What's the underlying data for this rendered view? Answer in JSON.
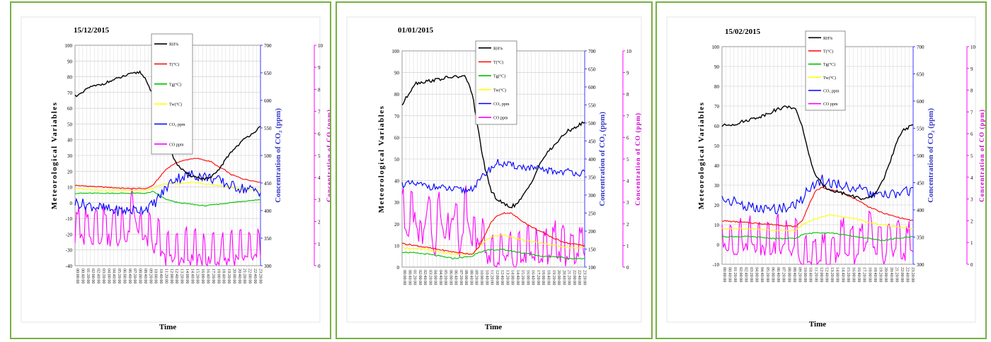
{
  "chart_data": [
    {
      "type": "line",
      "title": "15/12/2015",
      "xlabel": "Time",
      "ylabel_left": "Meteorological Variables",
      "ylabel_right1": "Concentration of CO₂ (ppm)",
      "ylabel_right2": "Concentration of CO (ppm)",
      "ylim_left": [
        -40,
        100
      ],
      "ylim_right1": [
        300,
        700
      ],
      "ylim_right2": [
        0,
        10
      ],
      "left_ticks": [
        "100",
        "90",
        "80",
        "70",
        "60",
        "50",
        "40",
        "30",
        "20",
        "10",
        "0",
        "-10",
        "-20",
        "-30",
        "-40"
      ],
      "right1_ticks": [
        "700",
        "650",
        "600",
        "550",
        "500",
        "450",
        "400",
        "350",
        "300"
      ],
      "right2_ticks": [
        "10",
        "9",
        "8",
        "7",
        "6",
        "5",
        "4",
        "3",
        "2",
        "1",
        "0"
      ],
      "legend": [
        "RH%",
        "T(°C)",
        "Tg(°C)",
        "Tw(°C)",
        "CO₂ ppm",
        "CO ppm"
      ],
      "n_points": 144,
      "series": [
        {
          "name": "RH%",
          "axis": "left",
          "color": "#000000",
          "x": [
            0,
            5,
            10,
            20,
            30,
            40,
            50,
            55,
            60,
            65,
            70,
            75,
            80,
            85,
            90,
            95,
            100,
            105,
            110,
            115,
            120,
            130,
            143
          ],
          "y": [
            68,
            69,
            73,
            75,
            78,
            81,
            83,
            78,
            68,
            55,
            42,
            30,
            23,
            19,
            17,
            16,
            15,
            16,
            20,
            26,
            32,
            40,
            48
          ]
        },
        {
          "name": "T(°C)",
          "axis": "left",
          "color": "#ff0000",
          "x": [
            0,
            20,
            40,
            55,
            60,
            65,
            70,
            75,
            80,
            85,
            90,
            95,
            100,
            105,
            110,
            115,
            120,
            130,
            143
          ],
          "y": [
            11,
            10,
            9,
            9,
            11,
            16,
            21,
            24,
            26,
            27,
            28,
            28,
            27,
            26,
            23,
            21,
            18,
            15,
            13
          ]
        },
        {
          "name": "Tg(°C)",
          "axis": "left",
          "color": "#00c000",
          "x": [
            0,
            20,
            40,
            55,
            60,
            65,
            70,
            80,
            90,
            100,
            110,
            120,
            130,
            143
          ],
          "y": [
            6,
            6,
            6,
            6,
            7,
            5,
            2,
            0,
            -1,
            -2,
            -1,
            0,
            1,
            2
          ]
        },
        {
          "name": "Tw(°C)",
          "axis": "left",
          "color": "#ffff00",
          "x": [
            0,
            20,
            40,
            55,
            60,
            65,
            70,
            80,
            90,
            100,
            110,
            120,
            130,
            143
          ],
          "y": [
            9,
            8,
            8,
            8,
            9,
            11,
            12,
            12,
            13,
            12,
            11,
            10,
            8,
            8
          ]
        },
        {
          "name": "CO₂ ppm",
          "axis": "right1",
          "color": "#0000ff",
          "x": [
            0,
            10,
            20,
            30,
            40,
            50,
            55,
            60,
            65,
            70,
            75,
            80,
            90,
            100,
            110,
            120,
            130,
            143
          ],
          "y": [
            415,
            410,
            405,
            400,
            400,
            402,
            405,
            410,
            425,
            440,
            455,
            460,
            465,
            462,
            455,
            445,
            440,
            435
          ]
        },
        {
          "name": "CO ppm",
          "axis": "right2",
          "color": "#ff00ff",
          "x": [
            0,
            10,
            20,
            30,
            40,
            45,
            50,
            55,
            60,
            70,
            80,
            90,
            100,
            110,
            120,
            130,
            143
          ],
          "y": [
            1.5,
            1.5,
            1.6,
            1.4,
            1.5,
            3.0,
            1.4,
            1.5,
            1.2,
            0.6,
            0.5,
            0.6,
            0.5,
            0.5,
            0.6,
            0.5,
            0.6
          ]
        }
      ]
    },
    {
      "type": "line",
      "title": "01/01/2015",
      "xlabel": "Time",
      "ylabel_left": "Meteorological Variables",
      "ylabel_right1": "Concentration of CO₂ (ppm)",
      "ylabel_right2": "Concentration of CO (ppm)",
      "ylim_left": [
        0,
        100
      ],
      "ylim_right1": [
        100,
        700
      ],
      "ylim_right2": [
        0,
        10
      ],
      "left_ticks": [
        "100",
        "90",
        "80",
        "70",
        "60",
        "50",
        "40",
        "30",
        "20",
        "10",
        "0"
      ],
      "right1_ticks": [
        "700",
        "650",
        "600",
        "550",
        "500",
        "450",
        "400",
        "350",
        "300",
        "250",
        "200",
        "150",
        "100"
      ],
      "right2_ticks": [
        "10",
        "9",
        "8",
        "7",
        "6",
        "5",
        "4",
        "3",
        "2",
        "1",
        "0"
      ],
      "legend": [
        "RH%",
        "T(°C)",
        "Tg(°C)",
        "Tw(°C)",
        "CO₂ ppm",
        "CO ppm"
      ],
      "n_points": 144,
      "series": [
        {
          "name": "RH%",
          "axis": "left",
          "color": "#000000",
          "x": [
            0,
            5,
            10,
            20,
            30,
            40,
            50,
            55,
            60,
            65,
            70,
            75,
            80,
            85,
            90,
            95,
            100,
            105,
            110,
            120,
            130,
            143
          ],
          "y": [
            75,
            80,
            85,
            86,
            87,
            88,
            88,
            80,
            62,
            45,
            35,
            31,
            29,
            28,
            29,
            33,
            38,
            44,
            50,
            57,
            63,
            67
          ]
        },
        {
          "name": "T(°C)",
          "axis": "left",
          "color": "#ff0000",
          "x": [
            0,
            20,
            40,
            55,
            60,
            65,
            70,
            75,
            80,
            85,
            90,
            100,
            110,
            120,
            130,
            143
          ],
          "y": [
            11,
            9,
            7,
            6,
            9,
            15,
            21,
            24,
            25,
            25,
            23,
            19,
            16,
            13,
            11,
            10
          ]
        },
        {
          "name": "Tg(°C)",
          "axis": "left",
          "color": "#00c000",
          "x": [
            0,
            20,
            40,
            55,
            60,
            70,
            80,
            90,
            100,
            110,
            120,
            130,
            143
          ],
          "y": [
            7,
            6,
            4,
            5,
            7,
            8,
            8,
            7,
            6,
            5,
            5,
            4,
            4
          ]
        },
        {
          "name": "Tw(°C)",
          "axis": "left",
          "color": "#ffff00",
          "x": [
            0,
            20,
            40,
            55,
            60,
            65,
            70,
            80,
            90,
            100,
            110,
            120,
            130,
            143
          ],
          "y": [
            9,
            8,
            6,
            6,
            9,
            12,
            14,
            15,
            13,
            12,
            11,
            10,
            9,
            9
          ]
        },
        {
          "name": "CO₂ ppm",
          "axis": "right1",
          "color": "#0000ff",
          "x": [
            0,
            10,
            20,
            30,
            40,
            50,
            55,
            60,
            65,
            70,
            75,
            80,
            90,
            100,
            110,
            120,
            130,
            143
          ],
          "y": [
            330,
            330,
            325,
            320,
            315,
            312,
            320,
            335,
            360,
            375,
            390,
            385,
            380,
            375,
            370,
            365,
            365,
            360
          ]
        },
        {
          "name": "CO ppm",
          "axis": "right2",
          "color": "#ff00ff",
          "x": [
            0,
            5,
            10,
            15,
            20,
            25,
            30,
            35,
            40,
            45,
            50,
            55,
            60,
            70,
            80,
            90,
            100,
            110,
            120,
            130,
            143
          ],
          "y": [
            2.5,
            2.0,
            2.8,
            1.0,
            2.9,
            0.8,
            2.7,
            1.2,
            2.8,
            1.0,
            2.6,
            1.3,
            1.5,
            0.4,
            0.9,
            0.3,
            1.0,
            0.4,
            1.0,
            0.5,
            0.9
          ]
        }
      ]
    },
    {
      "type": "line",
      "title": "15/02/2015",
      "xlabel": "Time",
      "ylabel_left": "Meteorological Variables",
      "ylabel_right1": "Concentration of CO₂ (ppm)",
      "ylabel_right2": "Concentration of CO (ppm)",
      "ylim_left": [
        -10,
        100
      ],
      "ylim_right1": [
        300,
        700
      ],
      "ylim_right2": [
        0,
        10
      ],
      "left_ticks": [
        "100",
        "90",
        "80",
        "70",
        "60",
        "50",
        "40",
        "30",
        "20",
        "10",
        "0",
        "-10"
      ],
      "right1_ticks": [
        "700",
        "650",
        "600",
        "550",
        "500",
        "450",
        "400",
        "350",
        "300"
      ],
      "right2_ticks": [
        "10",
        "9",
        "8",
        "7",
        "6",
        "5",
        "4",
        "3",
        "2",
        "1",
        "0"
      ],
      "legend": [
        "RH%",
        "T(°C)",
        "Tg(°C)",
        "Tw(°C)",
        "CO₂ ppm",
        "CO ppm"
      ],
      "n_points": 144,
      "series": [
        {
          "name": "RH%",
          "axis": "left",
          "color": "#000000",
          "x": [
            0,
            10,
            20,
            30,
            40,
            50,
            55,
            60,
            65,
            70,
            75,
            80,
            85,
            90,
            95,
            100,
            105,
            110,
            115,
            120,
            125,
            130,
            135,
            143
          ],
          "y": [
            60,
            61,
            63,
            65,
            68,
            70,
            68,
            60,
            45,
            35,
            30,
            28,
            27,
            26,
            25,
            24,
            23,
            23,
            26,
            32,
            40,
            50,
            58,
            60
          ]
        },
        {
          "name": "T(°C)",
          "axis": "left",
          "color": "#ff0000",
          "x": [
            0,
            20,
            40,
            55,
            60,
            65,
            70,
            75,
            80,
            85,
            90,
            100,
            110,
            120,
            130,
            143
          ],
          "y": [
            12,
            11,
            10,
            9,
            12,
            20,
            27,
            29,
            28,
            27,
            26,
            23,
            19,
            16,
            14,
            12
          ]
        },
        {
          "name": "Tg(°C)",
          "axis": "left",
          "color": "#00c000",
          "x": [
            0,
            20,
            40,
            55,
            60,
            70,
            80,
            90,
            100,
            110,
            120,
            130,
            143
          ],
          "y": [
            4,
            4,
            3,
            3,
            5,
            6,
            6,
            5,
            4,
            3,
            2,
            3,
            4
          ]
        },
        {
          "name": "Tw(°C)",
          "axis": "left",
          "color": "#ffff00",
          "x": [
            0,
            20,
            40,
            55,
            60,
            70,
            80,
            90,
            100,
            110,
            120,
            130,
            143
          ],
          "y": [
            8,
            8,
            7,
            7,
            10,
            13,
            15,
            14,
            13,
            11,
            10,
            9,
            8
          ]
        },
        {
          "name": "CO₂ ppm",
          "axis": "right1",
          "color": "#0000ff",
          "x": [
            0,
            10,
            20,
            30,
            40,
            50,
            55,
            60,
            65,
            70,
            75,
            80,
            90,
            100,
            110,
            120,
            130,
            143
          ],
          "y": [
            420,
            415,
            405,
            400,
            402,
            405,
            410,
            420,
            440,
            450,
            455,
            450,
            445,
            440,
            430,
            425,
            430,
            435
          ]
        },
        {
          "name": "CO ppm",
          "axis": "right2",
          "color": "#ff00ff",
          "x": [
            0,
            10,
            20,
            30,
            40,
            50,
            55,
            60,
            70,
            80,
            90,
            100,
            110,
            120,
            130,
            143
          ],
          "y": [
            1.0,
            1.0,
            1.2,
            1.0,
            1.1,
            1.0,
            0.9,
            0.3,
            0.2,
            0.2,
            1.0,
            0.5,
            1.2,
            0.6,
            0.8,
            0.7
          ]
        }
      ]
    }
  ]
}
